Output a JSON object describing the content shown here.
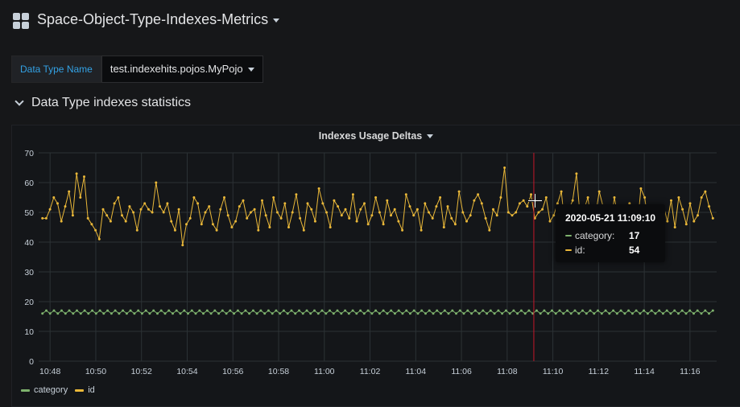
{
  "dashboard": {
    "title": "Space-Object-Type-Indexes-Metrics"
  },
  "variables": {
    "label": "Data Type Name",
    "value": "test.indexehits.pojos.MyPojo"
  },
  "row": {
    "title": "Data Type indexes statistics"
  },
  "panel": {
    "title": "Indexes Usage Deltas"
  },
  "tooltip": {
    "time": "2020-05-21 11:09:10",
    "rows": [
      {
        "label": "category:",
        "value": "17"
      },
      {
        "label": "id:",
        "value": "54"
      }
    ]
  },
  "colors": {
    "category": "#7eb26d",
    "id": "#eab839",
    "crosshair": "#c4162a",
    "grid": "#2c3235",
    "background": "#161719"
  },
  "chart_data": {
    "type": "line",
    "title": "Indexes Usage Deltas",
    "xlabel": "",
    "ylabel": "",
    "x_ticks": [
      "10:48",
      "10:50",
      "10:52",
      "10:54",
      "10:56",
      "10:58",
      "11:00",
      "11:02",
      "11:04",
      "11:06",
      "11:08",
      "11:10",
      "11:12",
      "11:14",
      "11:16"
    ],
    "x_range": [
      "10:47:30",
      "11:17:10"
    ],
    "ylim": [
      0,
      70
    ],
    "y_ticks": [
      0,
      10,
      20,
      30,
      40,
      50,
      60,
      70
    ],
    "grid": true,
    "legend": "bottom-left",
    "crosshair_time": "11:09:10",
    "series": [
      {
        "name": "category",
        "color": "#7eb26d",
        "values": [
          16,
          17,
          16,
          17,
          16,
          17,
          16,
          17,
          16,
          17,
          16,
          17,
          16,
          17,
          16,
          17,
          16,
          17,
          16,
          17,
          16,
          17,
          16,
          17,
          16,
          17,
          16,
          17,
          16,
          17,
          16,
          17,
          16,
          17,
          16,
          17,
          16,
          17,
          16,
          17,
          16,
          17,
          16,
          17,
          16,
          17,
          16,
          17,
          16,
          17,
          16,
          17,
          16,
          17,
          16,
          17,
          16,
          17,
          16,
          17,
          16,
          17,
          16,
          17,
          16,
          17,
          16,
          17,
          16,
          17,
          16,
          17,
          16,
          17,
          16,
          17,
          16,
          17,
          16,
          17,
          16,
          17,
          16,
          17,
          16,
          17,
          16,
          17,
          16,
          17,
          16,
          17,
          16,
          17,
          16,
          17,
          16,
          17,
          16,
          17,
          16,
          17,
          16,
          17,
          16,
          17,
          16,
          17,
          16,
          17,
          16,
          17,
          16,
          17,
          16,
          17,
          16,
          17,
          16,
          17,
          16,
          17,
          16,
          17,
          16,
          17,
          16,
          17,
          16,
          17,
          16,
          17,
          16,
          17,
          16,
          17,
          16,
          17,
          16,
          17,
          16,
          17,
          16,
          17,
          16,
          17,
          16,
          17,
          16,
          17,
          16,
          17,
          16,
          17,
          16,
          17,
          16,
          17,
          16,
          17,
          16,
          17,
          16,
          17,
          16,
          17,
          16,
          17,
          16,
          17,
          16,
          17,
          16,
          17,
          16,
          17
        ]
      },
      {
        "name": "id",
        "color": "#eab839",
        "values": [
          48,
          48,
          51,
          55,
          53,
          47,
          52,
          57,
          49,
          63,
          55,
          62,
          48,
          46,
          44,
          41,
          51,
          49,
          47,
          53,
          55,
          49,
          47,
          52,
          50,
          44,
          51,
          53,
          51,
          50,
          60,
          52,
          50,
          53,
          47,
          44,
          51,
          39,
          46,
          48,
          55,
          53,
          46,
          50,
          52,
          46,
          44,
          51,
          55,
          49,
          45,
          47,
          52,
          54,
          48,
          50,
          51,
          44,
          54,
          49,
          45,
          55,
          50,
          48,
          53,
          45,
          50,
          56,
          48,
          44,
          53,
          51,
          47,
          58,
          53,
          50,
          45,
          54,
          52,
          49,
          51,
          48,
          56,
          47,
          51,
          53,
          46,
          49,
          55,
          50,
          46,
          54,
          49,
          51,
          47,
          44,
          56,
          52,
          49,
          51,
          44,
          53,
          50,
          48,
          52,
          55,
          45,
          52,
          48,
          46,
          57,
          50,
          47,
          49,
          54,
          56,
          53,
          48,
          44,
          51,
          49,
          55,
          65,
          50,
          49,
          50,
          53,
          54,
          52,
          56,
          48,
          50,
          51,
          55,
          47,
          49,
          53,
          57,
          45,
          51,
          54,
          63,
          48,
          51,
          55,
          46,
          49,
          57,
          52,
          50,
          46,
          55,
          48,
          51,
          49,
          53,
          47,
          44,
          58,
          55,
          46,
          50,
          51,
          49,
          52,
          47,
          54,
          45,
          55,
          51,
          46,
          53,
          47,
          49,
          55,
          57,
          52,
          48
        ]
      }
    ]
  }
}
